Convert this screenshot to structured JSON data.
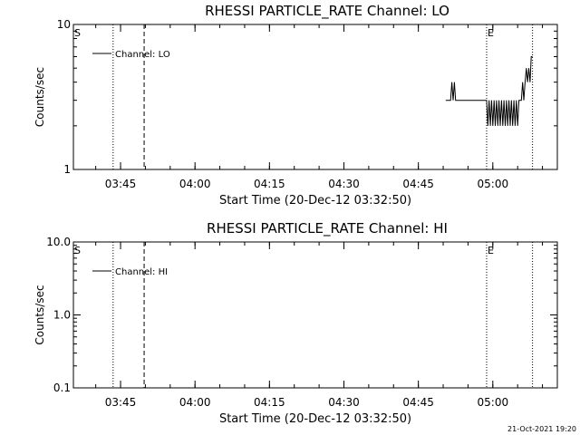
{
  "footer": {
    "timestamp": "21-Oct-2021 19:20"
  },
  "chart_data": [
    {
      "type": "line",
      "title": "RHESSI PARTICLE_RATE Channel: LO",
      "xlabel": "Start Time (20-Dec-12 03:32:50)",
      "ylabel": "Counts/sec",
      "yscale": "log",
      "xlim": [
        "03:35:30",
        "05:13:00"
      ],
      "ylim": [
        1,
        10
      ],
      "xticks": [
        "03:45",
        "04:00",
        "04:15",
        "04:30",
        "04:45",
        "05:00"
      ],
      "yticks": [
        "1",
        "10"
      ],
      "legend": {
        "label": "Channel: LO",
        "position": "top-left"
      },
      "markers": [
        {
          "label": "S",
          "time": "03:35:30",
          "style": "dotted"
        },
        {
          "label": "",
          "time": "03:43:30",
          "style": "dotted"
        },
        {
          "label": "",
          "time": "03:49:45",
          "style": "dashed"
        },
        {
          "label": "E",
          "time": "04:58:45",
          "style": "dotted"
        },
        {
          "label": "",
          "time": "05:08:00",
          "style": "dotted"
        }
      ],
      "series": [
        {
          "name": "Channel: LO",
          "x": [
            "04:50:30",
            "04:51:30",
            "04:51:45",
            "04:52:00",
            "04:52:15",
            "04:52:30",
            "04:52:45",
            "04:58:45",
            "04:59:00",
            "04:59:15",
            "04:59:30",
            "04:59:45",
            "05:00:00",
            "05:00:15",
            "05:00:30",
            "05:00:45",
            "05:01:00",
            "05:01:15",
            "05:01:30",
            "05:01:45",
            "05:02:00",
            "05:02:15",
            "05:02:30",
            "05:02:45",
            "05:03:00",
            "05:03:15",
            "05:03:30",
            "05:03:45",
            "05:04:00",
            "05:04:15",
            "05:04:30",
            "05:04:45",
            "05:05:00",
            "05:05:15",
            "05:05:30",
            "05:05:45",
            "05:06:00",
            "05:06:15",
            "05:06:30",
            "05:06:45",
            "05:07:00",
            "05:07:15",
            "05:07:30",
            "05:07:45",
            "05:08:00"
          ],
          "values": [
            3,
            3,
            4,
            3,
            4,
            3,
            3,
            3,
            2,
            3,
            2,
            3,
            2,
            3,
            2,
            3,
            2,
            3,
            2,
            3,
            2,
            3,
            2,
            3,
            2,
            3,
            2,
            3,
            2,
            3,
            2,
            3,
            2,
            3,
            3,
            3,
            4,
            3,
            4,
            5,
            4,
            5,
            4,
            6,
            6
          ]
        }
      ]
    },
    {
      "type": "line",
      "title": "RHESSI PARTICLE_RATE Channel: HI",
      "xlabel": "Start Time (20-Dec-12 03:32:50)",
      "ylabel": "Counts/sec",
      "yscale": "log",
      "xlim": [
        "03:35:30",
        "05:13:00"
      ],
      "ylim": [
        0.1,
        10.0
      ],
      "xticks": [
        "03:45",
        "04:00",
        "04:15",
        "04:30",
        "04:45",
        "05:00"
      ],
      "yticks": [
        "0.1",
        "1.0",
        "10.0"
      ],
      "legend": {
        "label": "Channel: HI",
        "position": "top-left"
      },
      "markers": [
        {
          "label": "S",
          "time": "03:35:30",
          "style": "dotted"
        },
        {
          "label": "",
          "time": "03:43:30",
          "style": "dotted"
        },
        {
          "label": "",
          "time": "03:49:45",
          "style": "dashed"
        },
        {
          "label": "E",
          "time": "04:58:45",
          "style": "dotted"
        },
        {
          "label": "",
          "time": "05:08:00",
          "style": "dotted"
        }
      ],
      "series": [
        {
          "name": "Channel: HI",
          "x": [],
          "values": []
        }
      ]
    }
  ]
}
